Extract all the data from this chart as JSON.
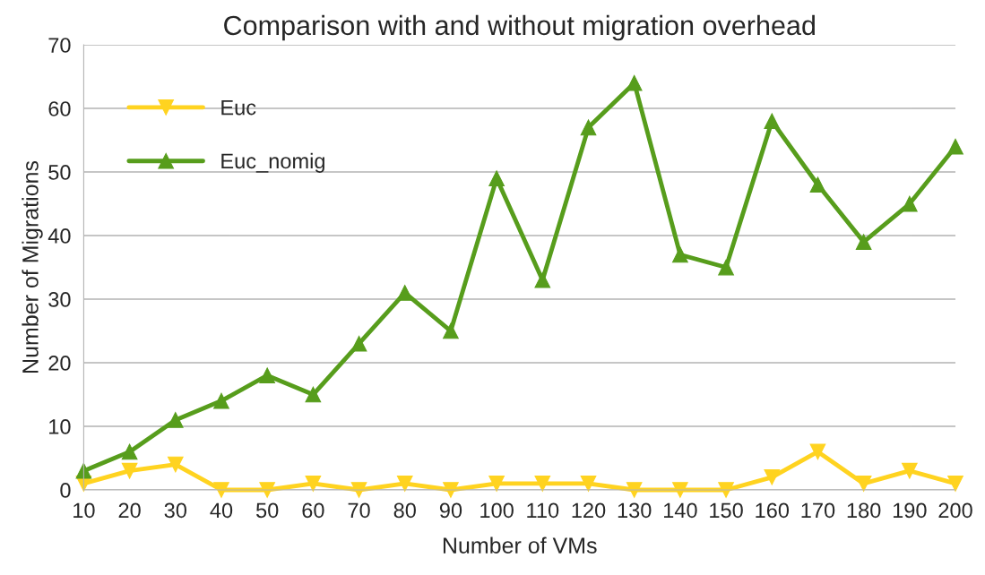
{
  "chart_data": {
    "type": "line",
    "title": "Comparison with and without migration overhead",
    "xlabel": "Number of VMs",
    "ylabel": "Number of Migrations",
    "categories": [
      "10",
      "20",
      "30",
      "40",
      "50",
      "60",
      "70",
      "80",
      "90",
      "100",
      "110",
      "120",
      "130",
      "140",
      "150",
      "160",
      "170",
      "180",
      "190",
      "200"
    ],
    "series": [
      {
        "name": "Euc",
        "color": "#ffd320",
        "marker": "triangle_down",
        "values": [
          1,
          3,
          4,
          0,
          0,
          1,
          0,
          1,
          0,
          1,
          1,
          1,
          0,
          0,
          0,
          2,
          6,
          1,
          3,
          1
        ]
      },
      {
        "name": "Euc_nomig",
        "color": "#579d1c",
        "marker": "triangle",
        "values": [
          3,
          6,
          11,
          14,
          18,
          15,
          23,
          31,
          25,
          49,
          33,
          57,
          64,
          37,
          35,
          58,
          48,
          39,
          45,
          54
        ]
      }
    ],
    "ylim": [
      0,
      70
    ],
    "yticks": [
      0,
      10,
      20,
      30,
      40,
      50,
      60,
      70
    ],
    "grid": "y",
    "legend": "top left",
    "line_style": "solid"
  }
}
